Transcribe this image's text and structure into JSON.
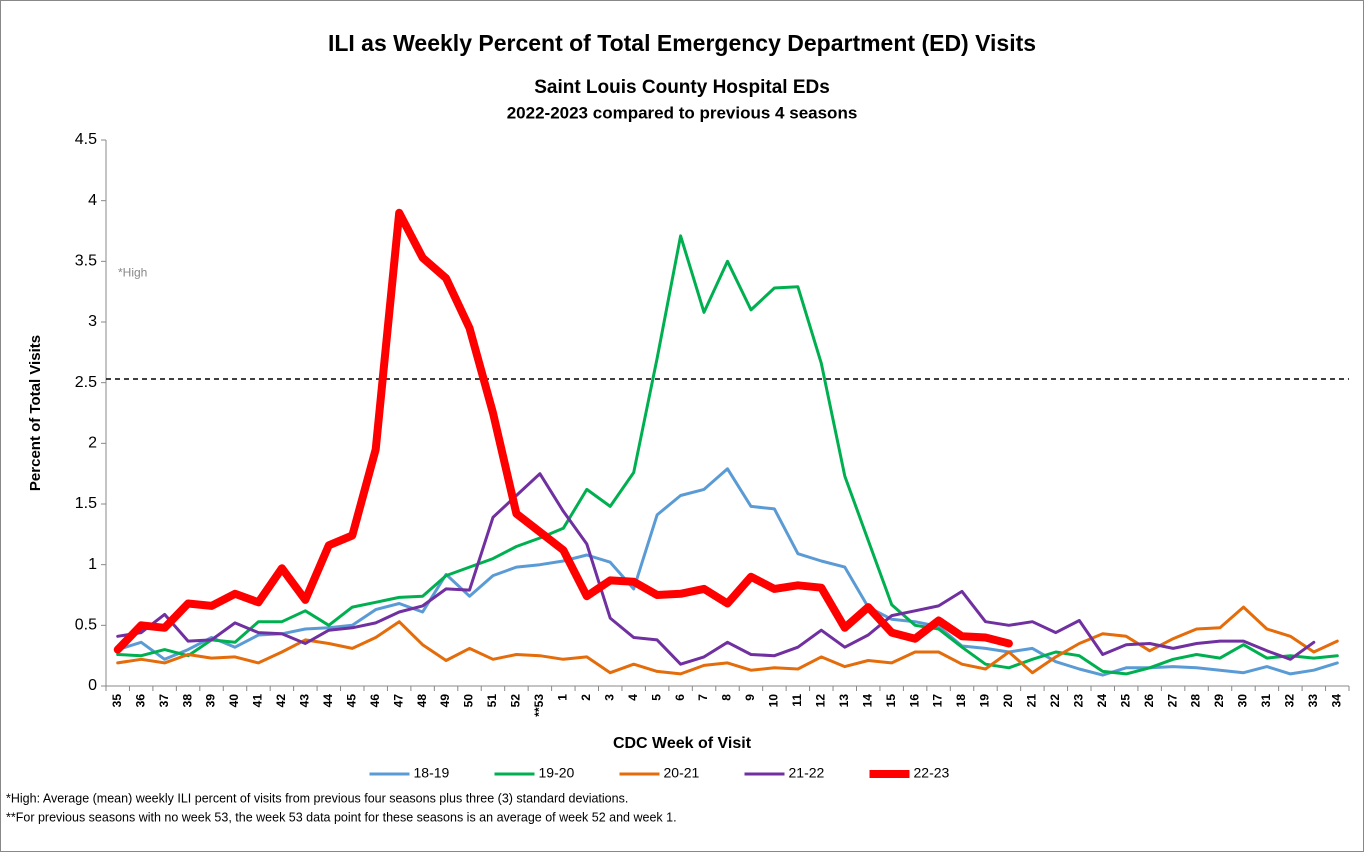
{
  "chart_data": {
    "type": "line",
    "title": "ILI as Weekly Percent of Total Emergency Department (ED) Visits",
    "subtitle": "Saint Louis County Hospital EDs",
    "subtitle2": "2022-2023 compared to previous 4 seasons",
    "xlabel": "CDC Week of Visit",
    "ylabel": "Percent of Total Visits",
    "categories": [
      "35",
      "36",
      "37",
      "38",
      "39",
      "40",
      "41",
      "42",
      "43",
      "44",
      "45",
      "46",
      "47",
      "48",
      "49",
      "50",
      "51",
      "52",
      "**53",
      "1",
      "2",
      "3",
      "4",
      "5",
      "6",
      "7",
      "8",
      "9",
      "10",
      "11",
      "12",
      "13",
      "14",
      "15",
      "16",
      "17",
      "18",
      "19",
      "20",
      "21",
      "22",
      "23",
      "24",
      "25",
      "26",
      "27",
      "28",
      "29",
      "30",
      "31",
      "32",
      "33",
      "34"
    ],
    "series": [
      {
        "name": "18-19",
        "color": "#5b9bd5",
        "width": 3,
        "values": [
          0.3,
          0.36,
          0.22,
          0.3,
          0.4,
          0.32,
          0.42,
          0.43,
          0.47,
          0.48,
          0.5,
          0.63,
          0.68,
          0.61,
          0.92,
          0.74,
          0.91,
          0.98,
          1.0,
          1.03,
          1.08,
          1.02,
          0.8,
          1.41,
          1.57,
          1.62,
          1.79,
          1.48,
          1.46,
          1.09,
          1.03,
          0.98,
          0.65,
          0.55,
          0.53,
          0.49,
          0.33,
          0.31,
          0.28,
          0.31,
          0.2,
          0.14,
          0.09,
          0.15,
          0.15,
          0.16,
          0.15,
          0.13,
          0.11,
          0.16,
          0.1,
          0.13,
          0.19
        ]
      },
      {
        "name": "19-20",
        "color": "#00b050",
        "width": 3,
        "values": [
          0.26,
          0.25,
          0.3,
          0.25,
          0.38,
          0.36,
          0.53,
          0.53,
          0.62,
          0.5,
          0.65,
          0.69,
          0.73,
          0.74,
          0.91,
          0.98,
          1.05,
          1.15,
          1.22,
          1.3,
          1.62,
          1.48,
          1.76,
          2.7,
          3.71,
          3.08,
          3.5,
          3.1,
          3.28,
          3.29,
          2.66,
          1.73,
          1.2,
          0.67,
          0.5,
          0.47,
          0.32,
          0.18,
          0.15,
          0.22,
          0.28,
          0.25,
          0.12,
          0.1,
          0.15,
          0.22,
          0.26,
          0.23,
          0.34,
          0.23,
          0.25,
          0.23,
          0.25
        ]
      },
      {
        "name": "20-21",
        "color": "#e46c0a",
        "width": 3,
        "values": [
          0.19,
          0.22,
          0.19,
          0.26,
          0.23,
          0.24,
          0.19,
          0.28,
          0.38,
          0.35,
          0.31,
          0.4,
          0.53,
          0.34,
          0.21,
          0.31,
          0.22,
          0.26,
          0.25,
          0.22,
          0.24,
          0.11,
          0.18,
          0.12,
          0.1,
          0.17,
          0.19,
          0.13,
          0.15,
          0.14,
          0.24,
          0.16,
          0.21,
          0.19,
          0.28,
          0.28,
          0.18,
          0.14,
          0.28,
          0.11,
          0.24,
          0.35,
          0.43,
          0.41,
          0.29,
          0.39,
          0.47,
          0.48,
          0.65,
          0.47,
          0.41,
          0.28,
          0.37
        ]
      },
      {
        "name": "21-22",
        "color": "#7030a0",
        "width": 3,
        "values": [
          0.41,
          0.44,
          0.59,
          0.37,
          0.38,
          0.52,
          0.44,
          0.43,
          0.35,
          0.46,
          0.48,
          0.52,
          0.61,
          0.66,
          0.8,
          0.79,
          1.39,
          1.57,
          1.75,
          1.44,
          1.17,
          0.56,
          0.4,
          0.38,
          0.18,
          0.24,
          0.36,
          0.26,
          0.25,
          0.32,
          0.46,
          0.32,
          0.42,
          0.58,
          0.62,
          0.66,
          0.78,
          0.53,
          0.5,
          0.53,
          0.44,
          0.54,
          0.26,
          0.34,
          0.35,
          0.31,
          0.35,
          0.37,
          0.37,
          0.29,
          0.22,
          0.36,
          null
        ]
      },
      {
        "name": "22-23",
        "color": "#ff0000",
        "width": 8,
        "values": [
          0.3,
          0.5,
          0.48,
          0.68,
          0.66,
          0.76,
          0.69,
          0.97,
          0.71,
          1.16,
          1.24,
          1.95,
          3.9,
          3.53,
          3.36,
          2.95,
          2.25,
          1.42,
          1.27,
          1.12,
          0.74,
          0.87,
          0.86,
          0.75,
          0.76,
          0.8,
          0.68,
          0.9,
          0.8,
          0.83,
          0.81,
          0.48,
          0.65,
          0.44,
          0.39,
          0.54,
          0.41,
          0.4,
          0.35,
          null,
          null,
          null,
          null,
          null,
          null,
          null,
          null,
          null,
          null,
          null,
          null,
          null,
          null
        ]
      }
    ],
    "threshold": 2.53,
    "threshold_label": "*High",
    "ylim": [
      0,
      4.5
    ],
    "yticks": [
      0,
      0.5,
      1,
      1.5,
      2,
      2.5,
      3,
      3.5,
      4,
      4.5
    ],
    "footnotes": [
      "*High:  Average (mean) weekly ILI percent of visits from previous four seasons plus three (3) standard deviations.",
      "**For previous seasons with no week 53, the week 53 data point for these seasons is an average of week 52 and week 1."
    ]
  }
}
